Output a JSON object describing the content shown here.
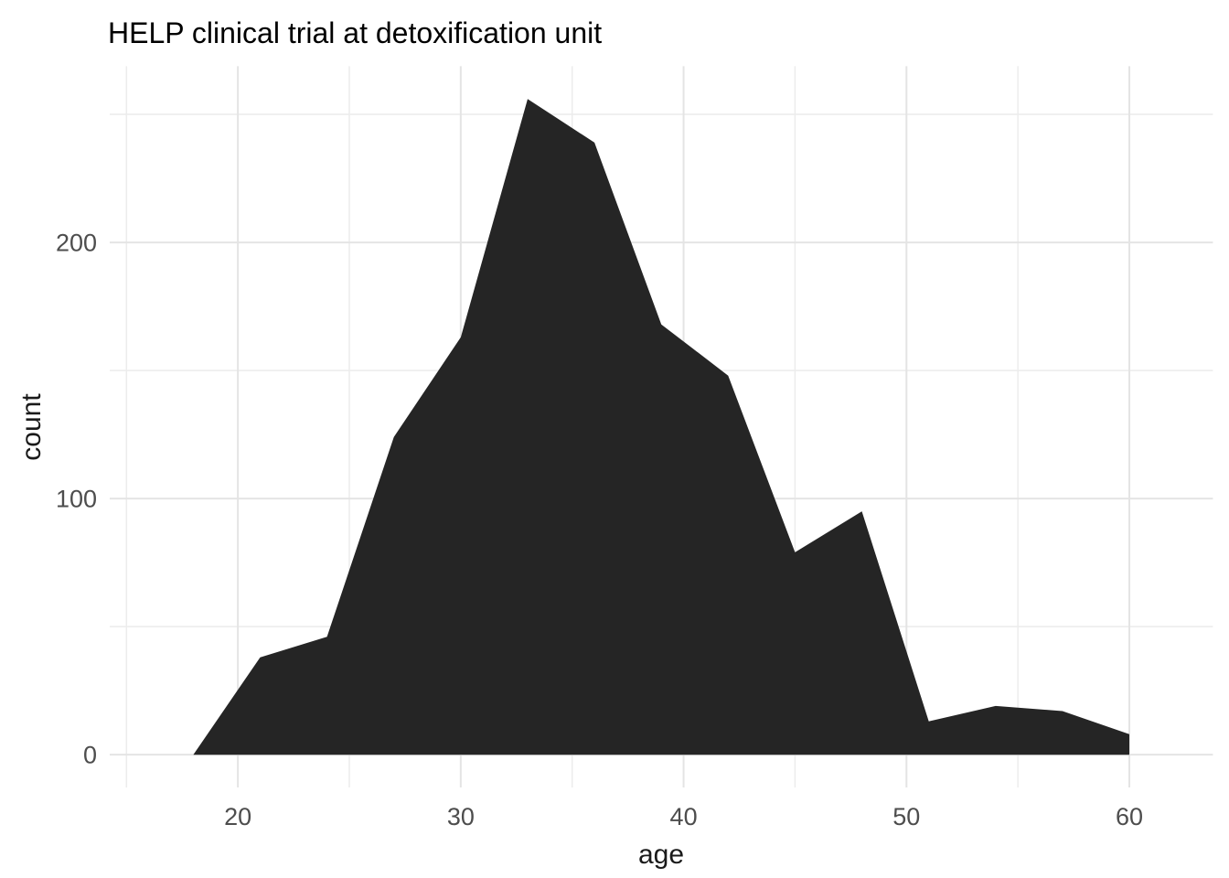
{
  "page": {
    "background": "#FFFFFF"
  },
  "chart_data": {
    "type": "area",
    "title": "HELP clinical trial at detoxification unit",
    "xlabel": "age",
    "ylabel": "count",
    "x": [
      18,
      21,
      24,
      27,
      30,
      33,
      36,
      39,
      42,
      45,
      48,
      51,
      54,
      57,
      60
    ],
    "series": [
      {
        "name": "count",
        "values": [
          0,
          38,
          46,
          124,
          163,
          256,
          239,
          168,
          148,
          79,
          95,
          13,
          19,
          17,
          8
        ]
      }
    ],
    "x_ticks_major": [
      20,
      30,
      40,
      50,
      60
    ],
    "x_ticks_minor": [
      15,
      25,
      35,
      45,
      55
    ],
    "y_ticks_major": [
      0,
      100,
      200
    ],
    "y_ticks_minor": [
      50,
      150,
      250
    ],
    "xlim": [
      14.25,
      63.75
    ],
    "ylim": [
      -12.8,
      268.8
    ],
    "grid": true,
    "legend": "none",
    "colors": {
      "fill": "#252525",
      "grid_major": "#E4E4E4",
      "grid_minor": "#ECECEC",
      "tick_label": "#4D4D4D",
      "axis_title": "#1A1A1A",
      "title": "#000000",
      "background": "#FFFFFF"
    }
  }
}
